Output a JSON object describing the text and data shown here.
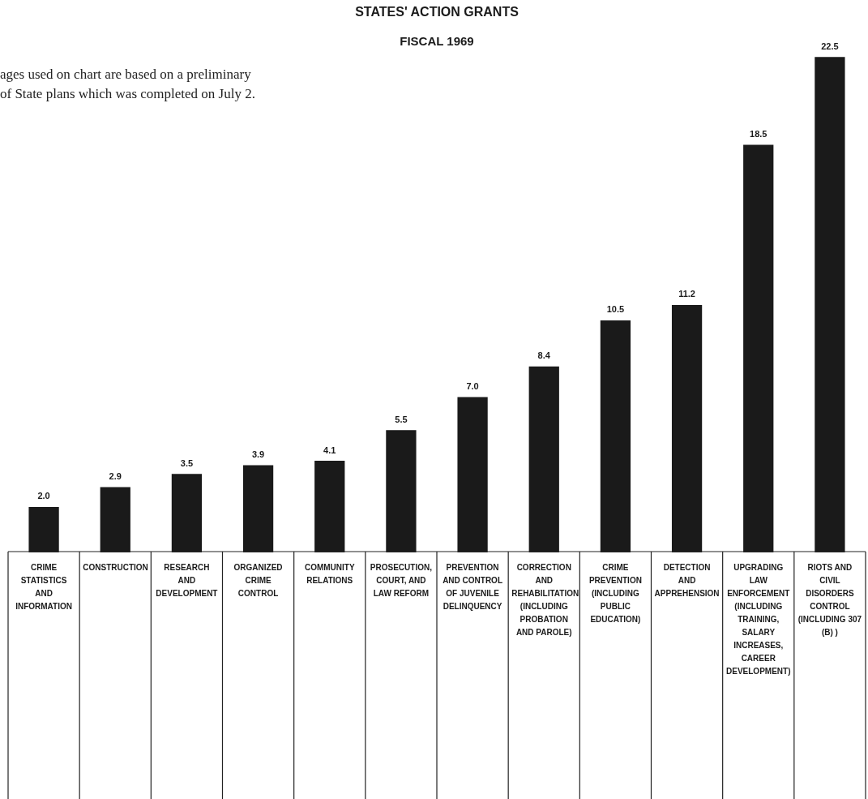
{
  "chart_data": {
    "type": "bar",
    "title": "STATES' ACTION GRANTS",
    "subtitle": "FISCAL 1969",
    "categories": [
      "CRIME STATISTICS AND INFORMATION",
      "CONSTRUCTION",
      "RESEARCH AND DEVELOPMENT",
      "ORGANIZED CRIME CONTROL",
      "COMMUNITY RELATIONS",
      "PROSECUTION, COURT, AND LAW REFORM",
      "PREVENTION AND CONTROL OF JUVENILE DELINQUENCY",
      "CORRECTION AND REHABILITATION (INCLUDING PROBATION AND PAROLE)",
      "CRIME PREVENTION (INCLUDING PUBLIC EDUCATION)",
      "DETECTION AND APPREHENSION",
      "UPGRADING LAW ENFORCEMENT (INCLUDING TRAINING, SALARY INCREASES, CAREER DEVELOPMENT)",
      "RIOTS AND CIVIL DISORDERS CONTROL (INCLUDING 307 (B) )"
    ],
    "values": [
      2.0,
      2.9,
      3.5,
      3.9,
      4.1,
      5.5,
      7.0,
      8.4,
      10.5,
      11.2,
      18.5,
      22.5
    ],
    "value_labels": [
      "2.0",
      "2.9",
      "3.5",
      "3.9",
      "4.1",
      "5.5",
      "7.0",
      "8.4",
      "10.5",
      "11.2",
      "18.5",
      "22.5"
    ],
    "color": "#1a1a1a",
    "annotations": [
      "ages used on chart are based on a preliminary\nof State plans which was completed on July 2."
    ]
  }
}
